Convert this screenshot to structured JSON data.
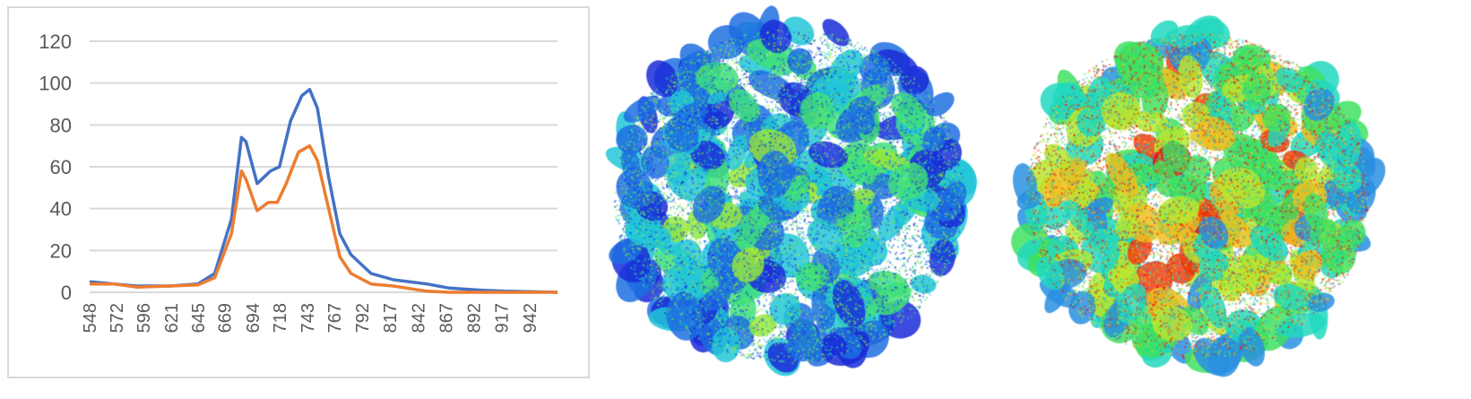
{
  "chart_data": {
    "type": "line",
    "title": "",
    "xlabel": "",
    "ylabel": "",
    "ylim": [
      0,
      120
    ],
    "yticks": [
      "0",
      "20",
      "40",
      "60",
      "80",
      "100",
      "120"
    ],
    "xlim": [
      548,
      967
    ],
    "xticks": [
      "548",
      "572",
      "596",
      "621",
      "645",
      "669",
      "694",
      "718",
      "743",
      "767",
      "792",
      "817",
      "842",
      "867",
      "892",
      "917",
      "942"
    ],
    "grid": true,
    "legend": "none",
    "series": [
      {
        "color": "#4472c4",
        "x": [
          548,
          570,
          590,
          620,
          645,
          660,
          675,
          684,
          688,
          698,
          710,
          718,
          728,
          738,
          745,
          752,
          762,
          772,
          782,
          800,
          820,
          850,
          870,
          900,
          920,
          967
        ],
        "y": [
          5,
          4,
          3,
          3,
          4,
          9,
          35,
          74,
          72,
          52,
          58,
          60,
          82,
          94,
          97,
          88,
          55,
          28,
          18,
          9,
          6,
          4,
          2,
          1,
          0.5,
          0
        ]
      },
      {
        "color": "#ed7d31",
        "x": [
          548,
          570,
          590,
          620,
          645,
          660,
          675,
          684,
          688,
          698,
          708,
          716,
          724,
          735,
          745,
          752,
          762,
          772,
          782,
          800,
          820,
          850,
          870,
          967
        ],
        "y": [
          4,
          4,
          2.5,
          3,
          3.5,
          7,
          28,
          58,
          54,
          39,
          43,
          43,
          52,
          67,
          70,
          63,
          40,
          17,
          9,
          4,
          3,
          0.5,
          0,
          0
        ]
      }
    ]
  },
  "images": [
    {
      "palette": [
        "#1a2bd8",
        "#1e6fe0",
        "#22c7d8",
        "#3fe07a",
        "#9be83a"
      ]
    },
    {
      "palette": [
        "#2a8fe0",
        "#22d8c0",
        "#3fe060",
        "#b8e830",
        "#f0c020",
        "#f04010",
        "#e01010"
      ]
    }
  ]
}
